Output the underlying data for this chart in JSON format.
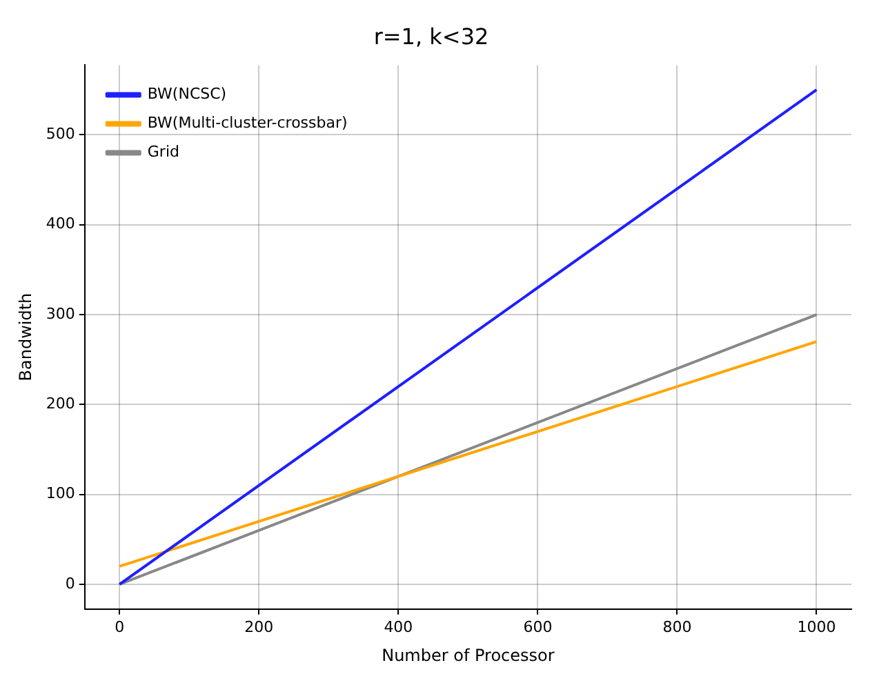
{
  "chart_data": {
    "type": "line",
    "title": "r=1, k<32",
    "xlabel": "Number of Processor",
    "ylabel": "Bandwidth",
    "x": [
      0,
      1000
    ],
    "series": [
      {
        "name": "BW(NCSC)",
        "color": "#1f1fff",
        "values": [
          0,
          550
        ]
      },
      {
        "name": "BW(Multi-cluster-crossbar)",
        "color": "#ffa500",
        "values": [
          20,
          270
        ]
      },
      {
        "name": "Grid",
        "color": "#888888",
        "values": [
          0,
          300
        ]
      }
    ],
    "xlim": [
      -50,
      1050
    ],
    "xticks": [
      0,
      200,
      400,
      600,
      800,
      1000
    ],
    "ylim": [
      -27.5,
      577.5
    ],
    "yticks": [
      0,
      100,
      200,
      300,
      400,
      500
    ],
    "grid": true,
    "legend": "top left",
    "marker": "none",
    "line_style": "solid"
  }
}
